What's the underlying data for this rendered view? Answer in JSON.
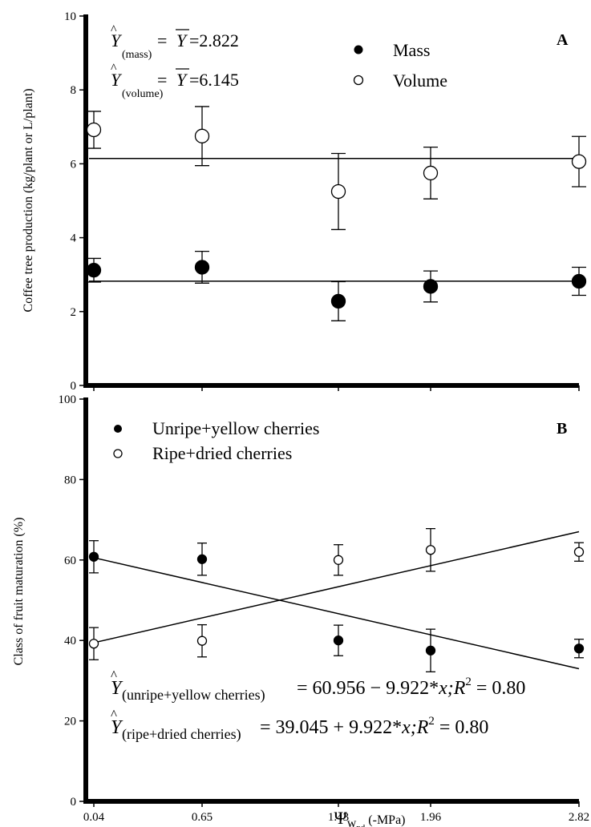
{
  "x_axis": {
    "title_symbol": "Ψ",
    "title_sub": "w",
    "title_subsub": "pd",
    "title_units": "(-MPa)"
  },
  "chart_data": [
    {
      "type": "scatter",
      "panel_label": "A",
      "ylabel": "Coffee tree production (kg/plant or L/plant)",
      "x": [
        0.04,
        0.65,
        1.43,
        1.96,
        2.82
      ],
      "xticks": [
        "0.04",
        "0.65",
        "1.43",
        "1.96",
        "2.82"
      ],
      "xlim": [
        0,
        2.82
      ],
      "ylim": [
        0,
        10
      ],
      "yticks": [
        0,
        2,
        4,
        6,
        8,
        10
      ],
      "grid": false,
      "legend_position": "top-right",
      "series": [
        {
          "name": "Mass",
          "marker": "filled-circle",
          "values": [
            3.12,
            3.2,
            2.28,
            2.68,
            2.82
          ],
          "error": [
            0.32,
            0.43,
            0.53,
            0.42,
            0.38
          ],
          "fit": {
            "type": "constant",
            "value": 2.822
          }
        },
        {
          "name": "Volume",
          "marker": "open-circle",
          "values": [
            6.92,
            6.75,
            5.25,
            5.75,
            6.06
          ],
          "error": [
            0.5,
            0.8,
            1.03,
            0.7,
            0.68
          ],
          "fit": {
            "type": "constant",
            "value": 6.145
          }
        }
      ],
      "equations": [
        {
          "sub": "(mass)",
          "value": "=2.822"
        },
        {
          "sub": "(volume)",
          "value": "=6.145"
        }
      ]
    },
    {
      "type": "scatter",
      "panel_label": "B",
      "ylabel": "Class of fruit maturation (%)",
      "x": [
        0.04,
        0.65,
        1.43,
        1.96,
        2.82
      ],
      "xticks": [
        "0.04",
        "0.65",
        "1.43",
        "1.96",
        "2.82"
      ],
      "xlim": [
        0,
        2.82
      ],
      "ylim": [
        0,
        100
      ],
      "yticks": [
        0,
        20,
        40,
        60,
        80,
        100
      ],
      "grid": false,
      "legend_position": "top-left",
      "series": [
        {
          "name": "Unripe+yellow cherries",
          "marker": "filled-circle",
          "values": [
            60.8,
            60.2,
            40.0,
            37.5,
            38.0
          ],
          "error": [
            4.0,
            4.0,
            3.8,
            5.3,
            2.3
          ],
          "fit": {
            "type": "linear",
            "intercept": 60.956,
            "slope": -9.922
          }
        },
        {
          "name": "Ripe+dried cherries",
          "marker": "open-circle",
          "values": [
            39.2,
            39.9,
            60.0,
            62.5,
            62.0
          ],
          "error": [
            4.0,
            4.0,
            3.8,
            5.3,
            2.3
          ],
          "fit": {
            "type": "linear",
            "intercept": 39.045,
            "slope": 9.922
          }
        }
      ],
      "equations": [
        {
          "sub": "(unripe+yellow cherries)",
          "rhs": "= 60.956 − 9.922*",
          "var": "x;R",
          "sup": "2",
          "tail": " = 0.80"
        },
        {
          "sub": "(ripe+dried cherries)",
          "rhs": "= 39.045 + 9.922*",
          "var": "x;R",
          "sup": "2",
          "tail": " = 0.80"
        }
      ]
    }
  ]
}
